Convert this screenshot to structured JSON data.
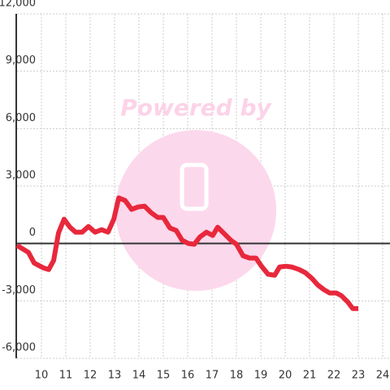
{
  "chart_data": {
    "type": "line",
    "watermark": "Powered by",
    "x": [
      9,
      9.47,
      9.7,
      10.07,
      10.3,
      10.5,
      10.7,
      10.93,
      11.17,
      11.4,
      11.67,
      11.93,
      12.2,
      12.47,
      12.73,
      12.97,
      13.17,
      13.43,
      13.7,
      13.97,
      14.23,
      14.5,
      14.77,
      15,
      15.27,
      15.53,
      15.77,
      16.03,
      16.27,
      16.5,
      16.77,
      17.03,
      17.23,
      17.5,
      17.77,
      18,
      18.27,
      18.53,
      18.8,
      19.03,
      19.3,
      19.57,
      19.77,
      20.03,
      20.27,
      20.57,
      20.83,
      21.1,
      21.33,
      21.6,
      21.83,
      22.1,
      22.3,
      22.57,
      22.77,
      23
    ],
    "series": [
      {
        "color": "#e8283c",
        "values": [
          -100,
          -470,
          -1020,
          -1270,
          -1360,
          -890,
          550,
          1270,
          850,
          590,
          590,
          890,
          590,
          720,
          590,
          1270,
          2380,
          2250,
          1780,
          1910,
          1950,
          1610,
          1360,
          1360,
          810,
          680,
          170,
          0,
          -40,
          340,
          590,
          420,
          850,
          510,
          170,
          -40,
          -640,
          -760,
          -760,
          -1190,
          -1610,
          -1660,
          -1230,
          -1190,
          -1230,
          -1360,
          -1530,
          -1830,
          -2160,
          -2420,
          -2590,
          -2590,
          -2720,
          -3060,
          -3400,
          -3400
        ]
      }
    ],
    "xlim": [
      9,
      24.3
    ],
    "xticks": [
      10,
      11,
      12,
      13,
      14,
      15,
      16,
      17,
      18,
      19,
      20,
      21,
      22,
      23,
      24
    ],
    "ylim": [
      -6000,
      12000
    ],
    "yticks": [
      {
        "value": -6000,
        "label": "-6,000"
      },
      {
        "value": -3000,
        "label": "-3,000"
      },
      0,
      {
        "value": 3000,
        "label": "3,000"
      },
      {
        "value": 6000,
        "label": "6,000"
      },
      {
        "value": 9000,
        "label": "9,000"
      },
      {
        "value": 12000,
        "label": "12,000"
      }
    ],
    "grid": true
  }
}
